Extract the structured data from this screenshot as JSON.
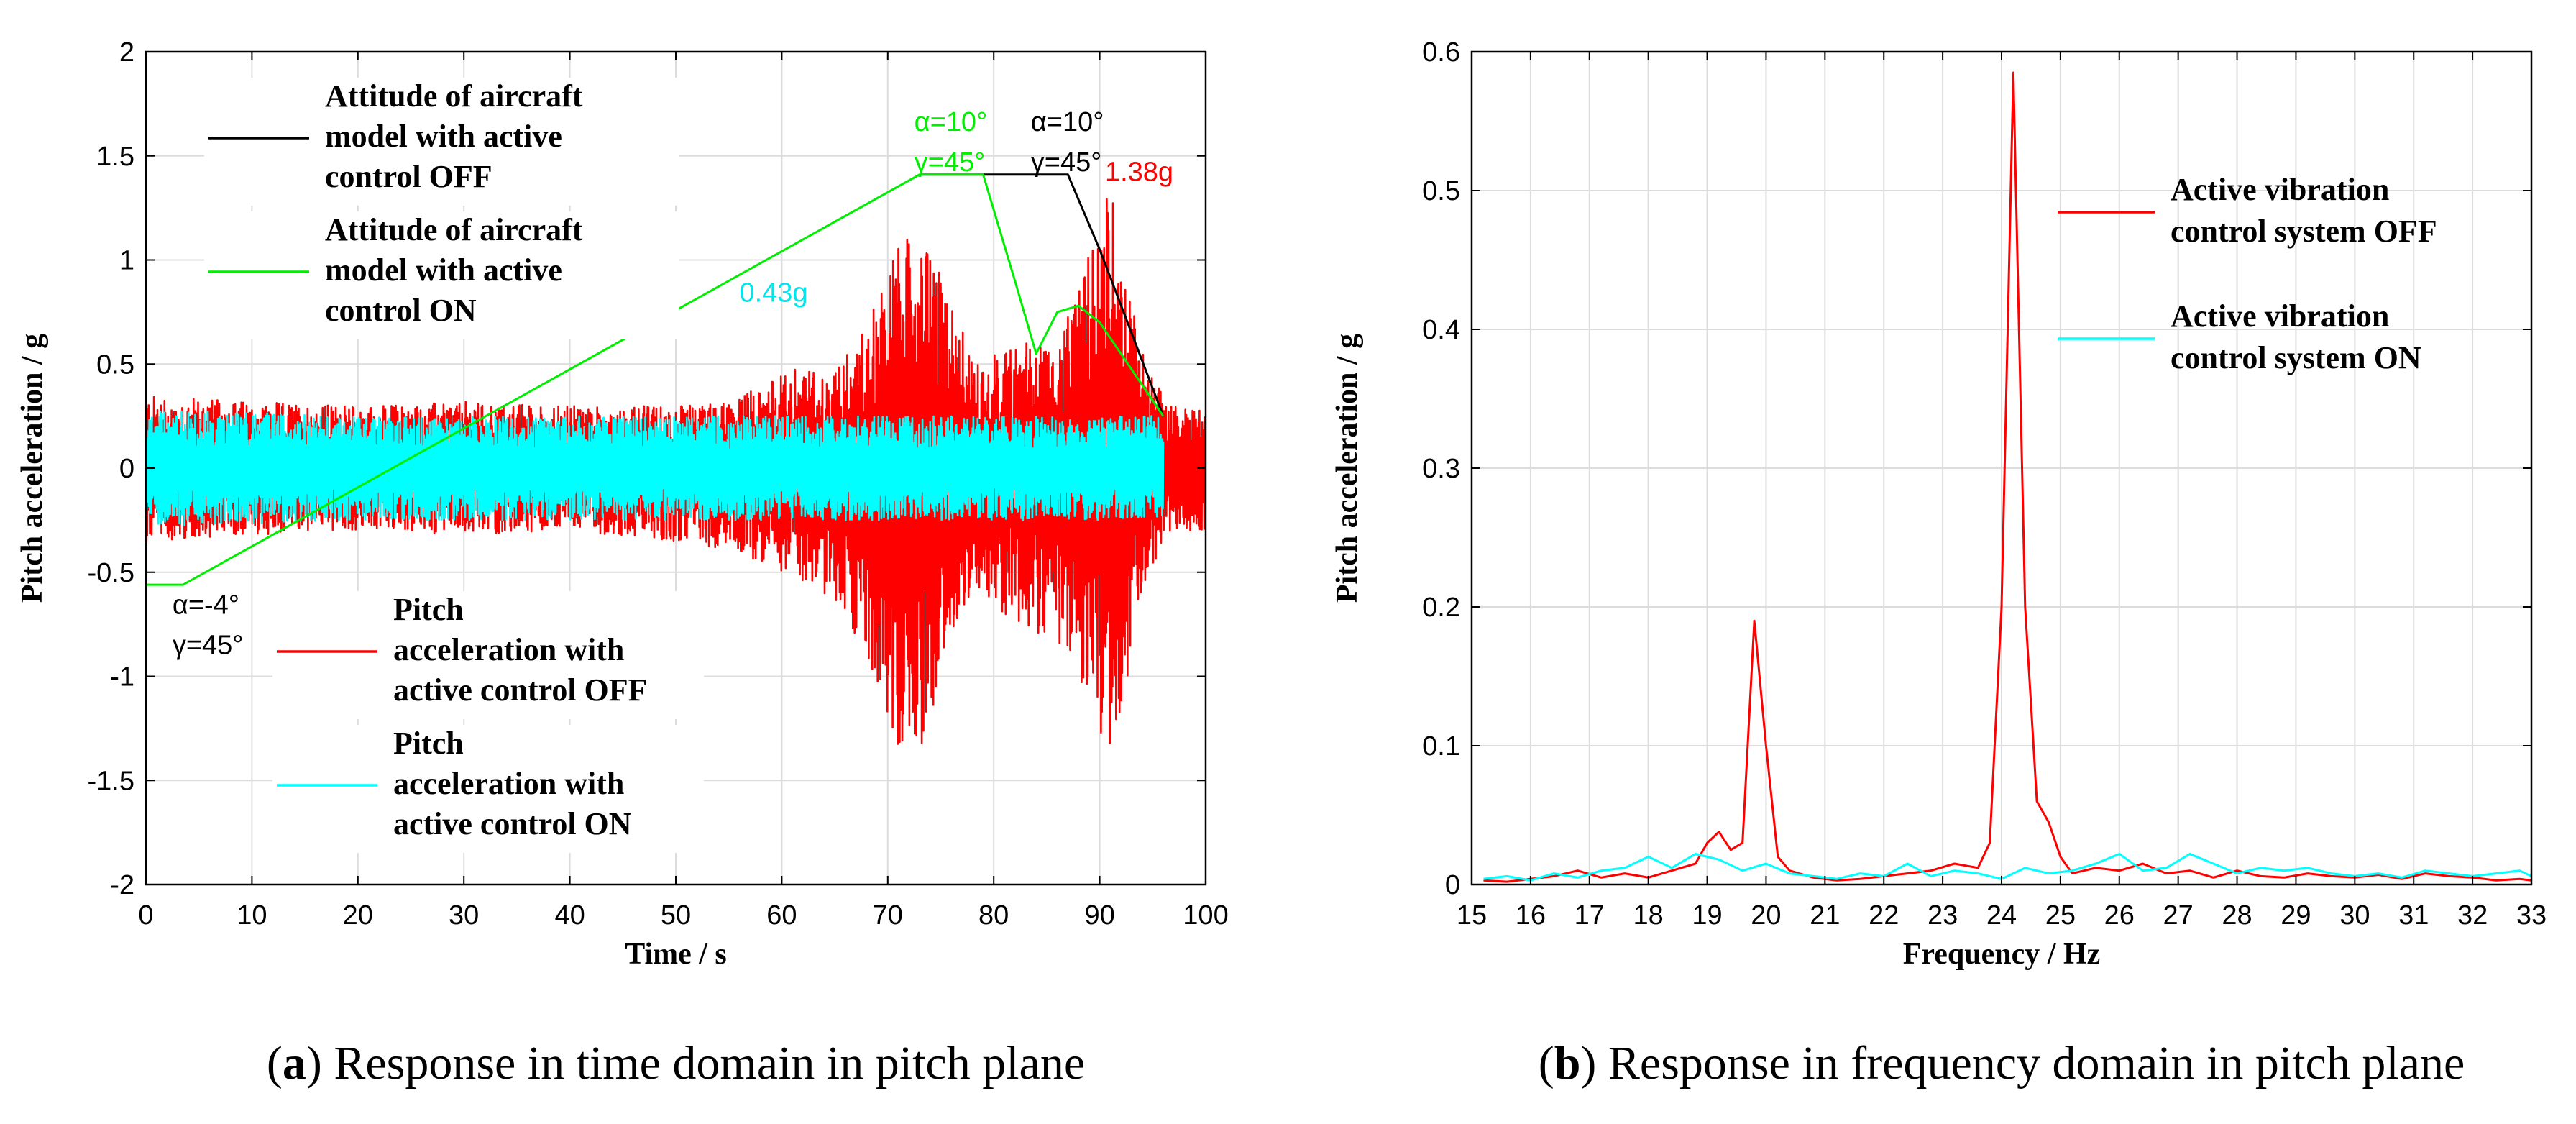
{
  "colors": {
    "off": "#ff0000",
    "on": "#00ffff",
    "attitude_off": "#000000",
    "attitude_on": "#00ee00",
    "grid": "#dcdcdc",
    "annotation_on": "#00ee00",
    "annotation_off": "#000000",
    "annotation_cyan": "#00e5ee",
    "annotation_red": "#ff0000"
  },
  "chart_data": [
    {
      "type": "line",
      "panel": "a",
      "caption_letter": "a",
      "caption_text": "Response in time domain in pitch plane",
      "xlabel": "Time / s",
      "ylabel": "Pitch acceleration / g",
      "xlim": [
        0,
        100
      ],
      "ylim": [
        -2,
        2
      ],
      "xticks": [
        0,
        10,
        20,
        30,
        40,
        50,
        60,
        70,
        80,
        90,
        100
      ],
      "yticks": [
        2,
        1.5,
        1,
        0.5,
        0,
        -0.5,
        -1,
        -1.5,
        -2
      ],
      "grid": true,
      "series": [
        {
          "name": "Pitch acceleration with active control OFF",
          "kind": "envelope",
          "color": "#ff0000",
          "envelope": {
            "t": [
              0,
              10,
              20,
              30,
              40,
              50,
              55,
              58,
              60,
              62,
              64,
              66,
              68,
              70,
              71,
              72,
              73,
              74,
              75,
              76,
              77,
              78,
              80,
              82,
              84,
              86,
              88,
              90,
              91,
              92,
              94,
              96,
              97,
              100
            ],
            "upper": [
              0.35,
              0.32,
              0.3,
              0.32,
              0.3,
              0.3,
              0.32,
              0.4,
              0.45,
              0.5,
              0.45,
              0.55,
              0.7,
              0.95,
              1.1,
              1.1,
              1.0,
              1.15,
              0.9,
              0.8,
              0.7,
              0.5,
              0.55,
              0.6,
              0.65,
              0.6,
              0.85,
              1.2,
              1.4,
              1.0,
              0.6,
              0.35,
              0.3,
              0.3
            ],
            "lower": [
              -0.35,
              -0.32,
              -0.3,
              -0.32,
              -0.3,
              -0.35,
              -0.4,
              -0.45,
              -0.5,
              -0.55,
              -0.6,
              -0.7,
              -0.95,
              -1.2,
              -1.35,
              -1.25,
              -1.4,
              -1.2,
              -1.0,
              -0.8,
              -0.7,
              -0.6,
              -0.65,
              -0.75,
              -0.8,
              -0.85,
              -1.0,
              -1.3,
              -1.45,
              -1.2,
              -0.6,
              -0.35,
              -0.3,
              -0.3
            ]
          }
        },
        {
          "name": "Pitch acceleration with active control ON",
          "kind": "envelope",
          "color": "#00ffff",
          "envelope": {
            "t": [
              0,
              20,
              40,
              60,
              70,
              80,
              90,
              96
            ],
            "upper": [
              0.28,
              0.25,
              0.25,
              0.25,
              0.25,
              0.25,
              0.25,
              0.25
            ],
            "lower": [
              -0.28,
              -0.25,
              -0.25,
              -0.25,
              -0.25,
              -0.25,
              -0.25,
              -0.25
            ]
          }
        },
        {
          "name": "Attitude of aircraft model with active control OFF",
          "kind": "line",
          "color": "#000000",
          "x": [
            73,
            79,
            87,
            90,
            96
          ],
          "y": [
            1.41,
            1.41,
            1.41,
            1.05,
            0.25
          ]
        },
        {
          "name": "Attitude of aircraft model with active control ON",
          "kind": "line",
          "color": "#00ee00",
          "x": [
            0,
            3.5,
            73,
            79,
            82,
            84,
            86,
            88,
            90,
            96
          ],
          "y": [
            -0.56,
            -0.56,
            1.41,
            1.41,
            0.9,
            0.55,
            0.75,
            0.78,
            0.7,
            0.25
          ]
        }
      ],
      "legend": {
        "top": [
          {
            "series": 2,
            "lines": [
              "Attitude of aircraft",
              "model with active",
              "control OFF"
            ]
          },
          {
            "series": 3,
            "lines": [
              "Attitude of aircraft",
              "model with active",
              "control ON"
            ]
          }
        ],
        "bottom": [
          {
            "series": 0,
            "lines": [
              "Pitch",
              "acceleration with",
              "active control OFF"
            ]
          },
          {
            "series": 1,
            "lines": [
              "Pitch",
              "acceleration with",
              "active control ON"
            ]
          }
        ]
      },
      "annotations": [
        {
          "lines": [
            "α=10°",
            "γ=45°"
          ],
          "color": "#00ee00",
          "at": [
            72.5,
            1.62
          ]
        },
        {
          "lines": [
            "α=10°",
            "γ=45°"
          ],
          "color": "#000000",
          "at": [
            83.5,
            1.62
          ]
        },
        {
          "lines": [
            "1.38g"
          ],
          "color": "#ff0000",
          "at": [
            90.5,
            1.38
          ]
        },
        {
          "lines": [
            "0.43g"
          ],
          "color": "#00e5ee",
          "at": [
            56,
            0.8
          ]
        },
        {
          "lines": [
            "α=-4°",
            "γ=45°"
          ],
          "color": "#000000",
          "at": [
            2.5,
            -0.7
          ]
        }
      ]
    },
    {
      "type": "line",
      "panel": "b",
      "caption_letter": "b",
      "caption_text": "Response in frequency domain in pitch plane",
      "xlabel": "Frequency / Hz",
      "ylabel": "Pitch acceleration / g",
      "xlim": [
        15,
        33
      ],
      "ylim": [
        0,
        0.6
      ],
      "xticks": [
        15,
        16,
        17,
        18,
        19,
        20,
        21,
        22,
        23,
        24,
        25,
        26,
        27,
        28,
        29,
        30,
        31,
        32,
        33
      ],
      "yticks": [
        0.6,
        0.5,
        0.4,
        0.3,
        0.2,
        0.1,
        0
      ],
      "grid": true,
      "series": [
        {
          "name": "Active vibration control system OFF",
          "kind": "line",
          "color": "#ff0000",
          "x": [
            15.2,
            15.6,
            16.0,
            16.4,
            16.8,
            17.2,
            17.6,
            18.0,
            18.4,
            18.8,
            19.0,
            19.2,
            19.4,
            19.6,
            19.8,
            20.0,
            20.2,
            20.4,
            20.8,
            21.2,
            21.6,
            22.0,
            22.4,
            22.8,
            23.2,
            23.6,
            23.8,
            24.0,
            24.2,
            24.4,
            24.6,
            24.8,
            25.0,
            25.2,
            25.6,
            26.0,
            26.4,
            26.8,
            27.2,
            27.6,
            28.0,
            28.4,
            28.8,
            29.2,
            29.6,
            30.0,
            30.4,
            30.8,
            31.2,
            31.6,
            32.0,
            32.4,
            32.8,
            33.0
          ],
          "y": [
            0.003,
            0.002,
            0.004,
            0.006,
            0.01,
            0.005,
            0.008,
            0.005,
            0.01,
            0.015,
            0.03,
            0.038,
            0.025,
            0.03,
            0.19,
            0.1,
            0.02,
            0.01,
            0.005,
            0.003,
            0.004,
            0.006,
            0.008,
            0.01,
            0.015,
            0.012,
            0.03,
            0.2,
            0.585,
            0.2,
            0.06,
            0.045,
            0.02,
            0.008,
            0.012,
            0.01,
            0.015,
            0.008,
            0.01,
            0.005,
            0.01,
            0.006,
            0.005,
            0.008,
            0.006,
            0.005,
            0.007,
            0.004,
            0.008,
            0.006,
            0.005,
            0.003,
            0.004,
            0.003
          ]
        },
        {
          "name": "Active vibration control system ON",
          "kind": "line",
          "color": "#00ffff",
          "x": [
            15.2,
            15.6,
            16.0,
            16.4,
            16.8,
            17.2,
            17.6,
            18.0,
            18.4,
            18.8,
            19.2,
            19.6,
            20.0,
            20.4,
            20.8,
            21.2,
            21.6,
            22.0,
            22.4,
            22.8,
            23.2,
            23.6,
            24.0,
            24.4,
            24.8,
            25.2,
            25.6,
            26.0,
            26.4,
            26.8,
            27.2,
            27.6,
            28.0,
            28.4,
            28.8,
            29.2,
            29.6,
            30.0,
            30.4,
            30.8,
            31.2,
            31.6,
            32.0,
            32.4,
            32.8,
            33.0
          ],
          "y": [
            0.004,
            0.006,
            0.003,
            0.008,
            0.005,
            0.01,
            0.012,
            0.02,
            0.012,
            0.022,
            0.018,
            0.01,
            0.015,
            0.008,
            0.006,
            0.004,
            0.008,
            0.006,
            0.015,
            0.006,
            0.01,
            0.008,
            0.004,
            0.012,
            0.008,
            0.01,
            0.015,
            0.022,
            0.01,
            0.012,
            0.022,
            0.015,
            0.008,
            0.012,
            0.01,
            0.012,
            0.008,
            0.006,
            0.008,
            0.005,
            0.01,
            0.008,
            0.006,
            0.008,
            0.01,
            0.006
          ]
        }
      ],
      "legend": {
        "entries": [
          {
            "series": 0,
            "lines": [
              "Active vibration",
              "control system OFF"
            ]
          },
          {
            "series": 1,
            "lines": [
              "Active vibration",
              "control system ON"
            ]
          }
        ]
      }
    }
  ]
}
